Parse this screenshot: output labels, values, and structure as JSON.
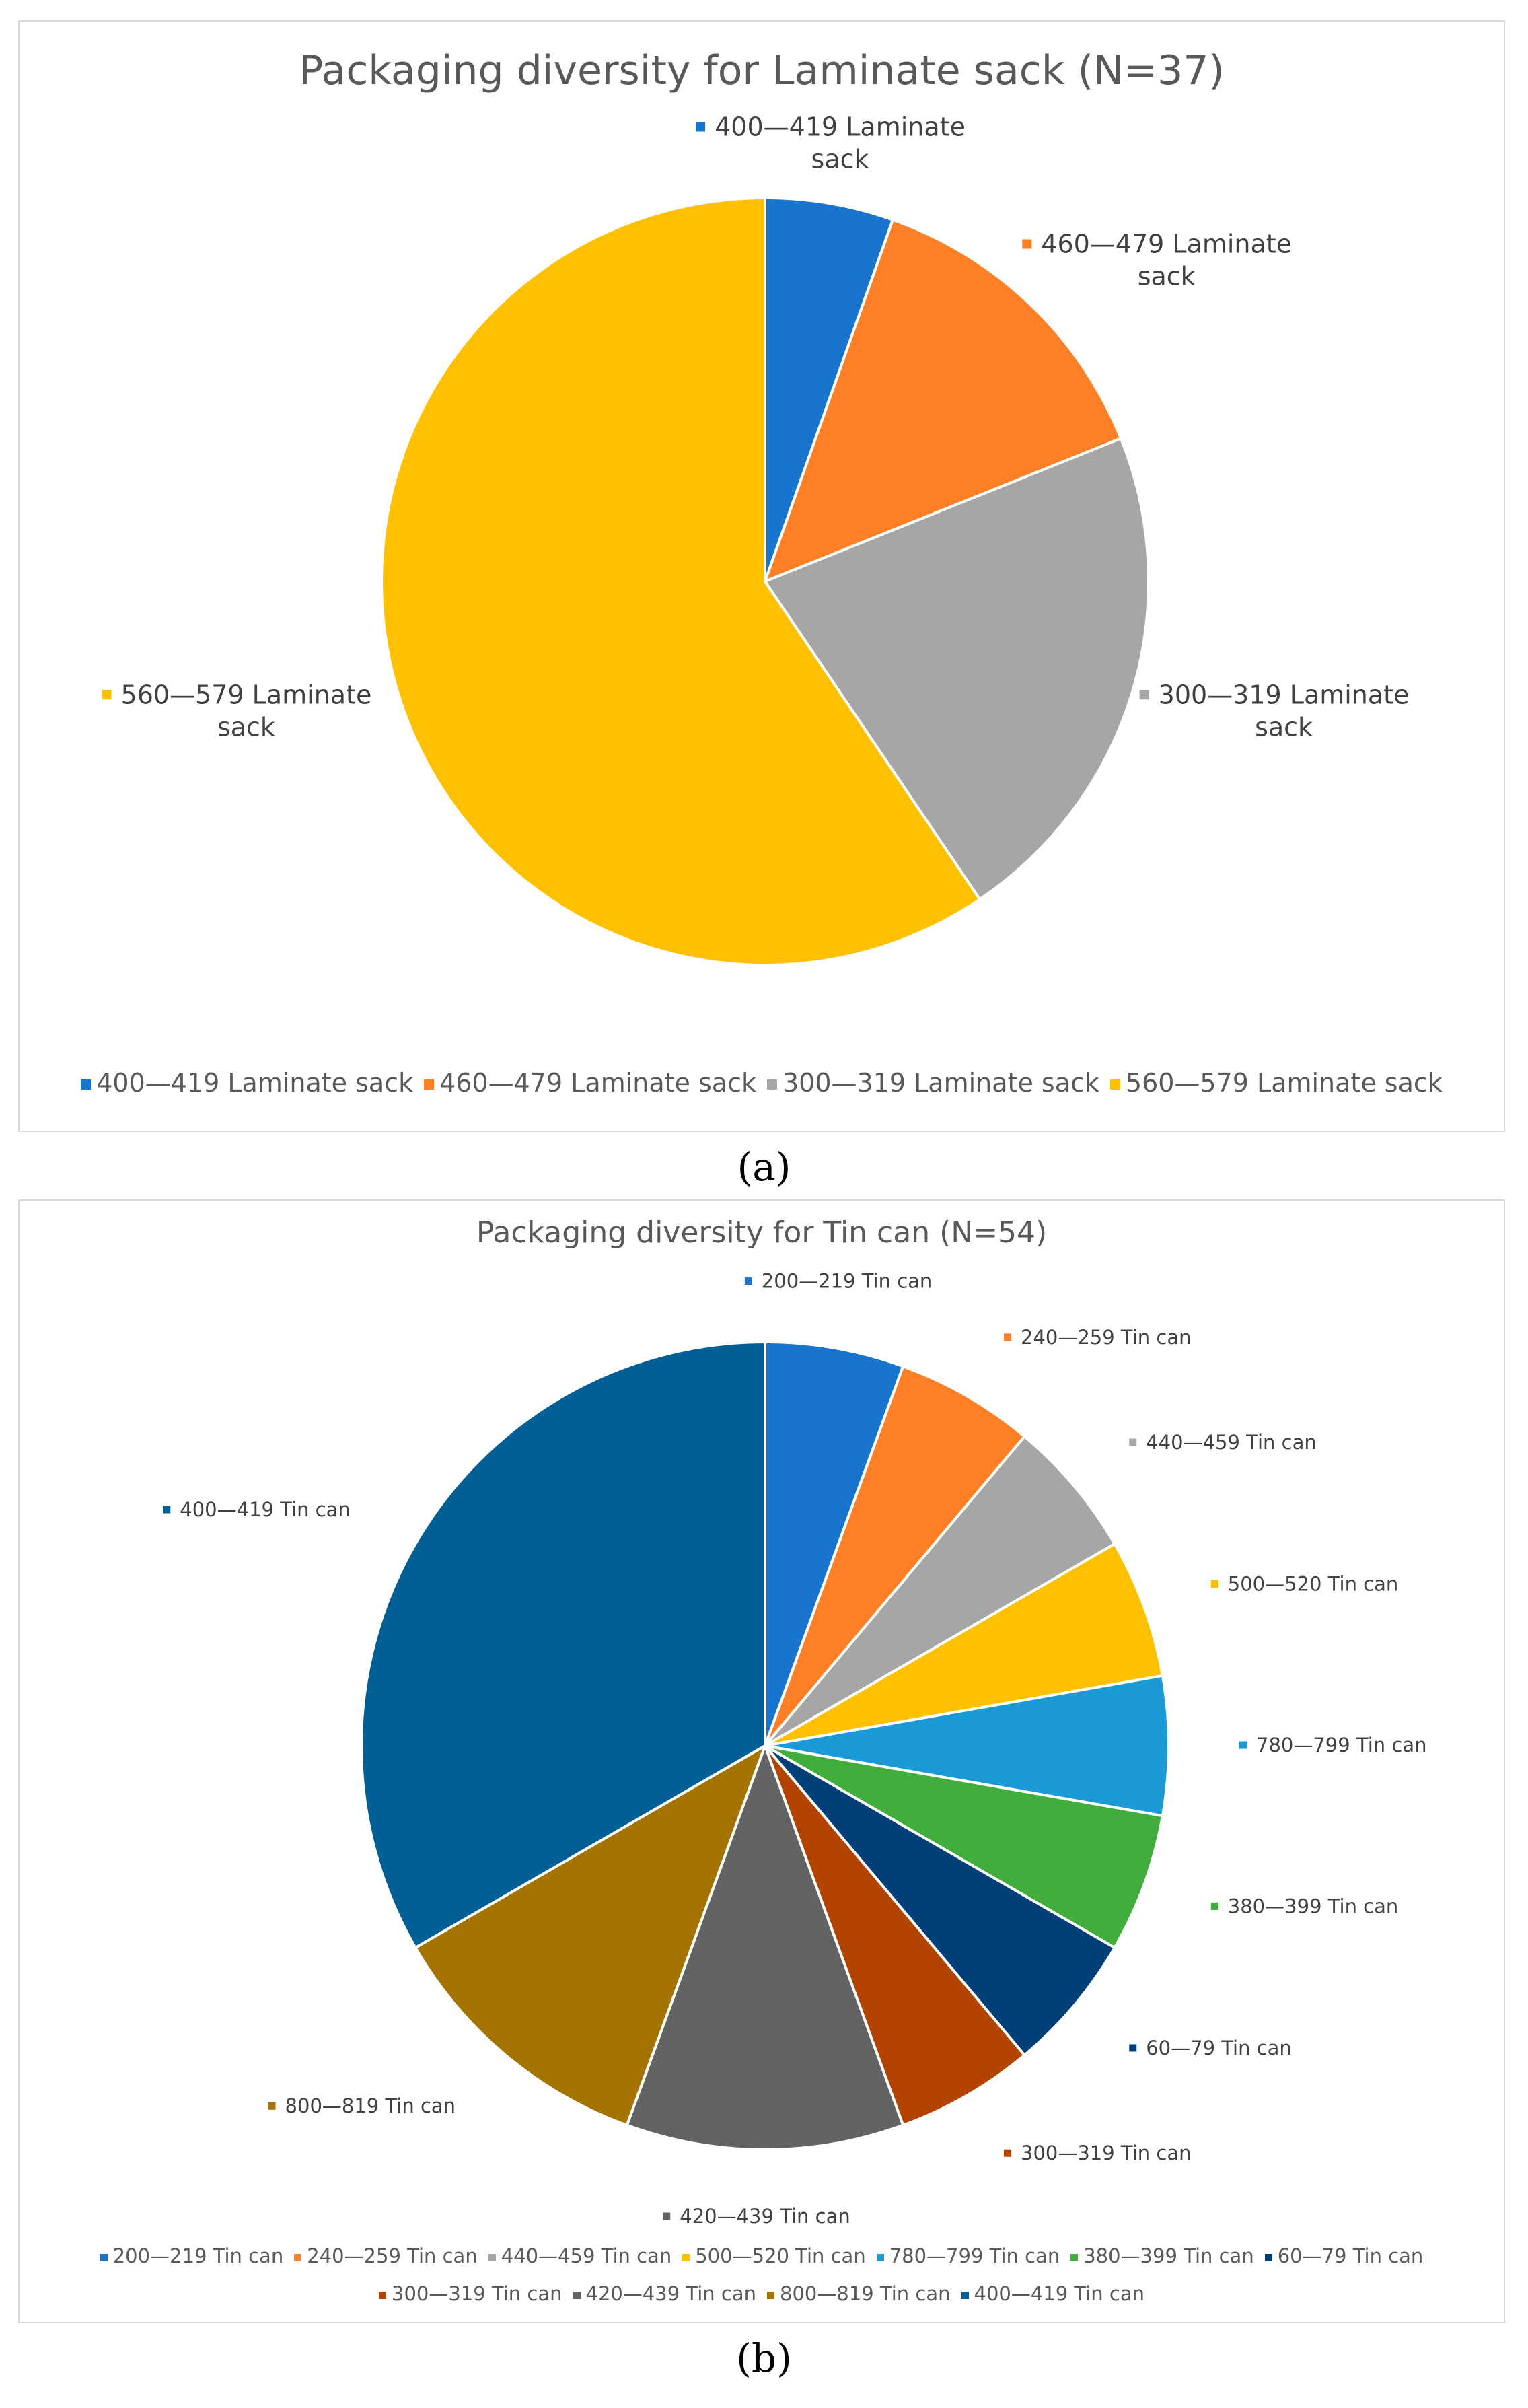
{
  "figures": [
    {
      "caption": "a",
      "chart_data": {
        "type": "pie",
        "title": "Packaging diversity for Laminate sack (N=37)",
        "categories": [
          "400—419 Laminate sack",
          "460—479 Laminate sack",
          "300—319 Laminate sack",
          "560—579 Laminate sack"
        ],
        "values": [
          2,
          5,
          8,
          22
        ],
        "colors": [
          "#1874cd",
          "#ff7f27",
          "#a6a6a6",
          "#ffc000"
        ],
        "data_labels": [
          [
            "400—419 Laminate",
            "sack"
          ],
          [
            "460—479 Laminate",
            "sack"
          ],
          [
            "300—319 Laminate",
            "sack"
          ],
          [
            "560—579 Laminate",
            "sack"
          ]
        ],
        "legend_position": "bottom",
        "start_angle": "12 o'clock",
        "direction": "clockwise"
      }
    },
    {
      "caption": "b",
      "chart_data": {
        "type": "pie",
        "title": "Packaging diversity for Tin can (N=54)",
        "categories": [
          "200—219 Tin can",
          "240—259 Tin can",
          "440—459 Tin can",
          "500—520 Tin can",
          "780—799 Tin can",
          "380—399 Tin can",
          "60—79 Tin can",
          "300—319 Tin can",
          "420—439 Tin can",
          "800—819 Tin can",
          "400—419 Tin can"
        ],
        "values": [
          3,
          3,
          3,
          3,
          3,
          3,
          3,
          3,
          6,
          6,
          18
        ],
        "colors": [
          "#1874cd",
          "#ff7f27",
          "#a6a6a6",
          "#ffc000",
          "#1a9bd7",
          "#40ad3c",
          "#003f78",
          "#b34400",
          "#636363",
          "#a47300",
          "#005f94"
        ],
        "data_labels": [
          [
            "200—219 Tin can"
          ],
          [
            "240—259 Tin can"
          ],
          [
            "440—459 Tin can"
          ],
          [
            "500—520 Tin can"
          ],
          [
            "780—799 Tin can"
          ],
          [
            "380—399 Tin can"
          ],
          [
            "60—79 Tin can"
          ],
          [
            "300—319 Tin can"
          ],
          [
            "420—439 Tin can"
          ],
          [
            "800—819 Tin can"
          ],
          [
            "400—419 Tin can"
          ]
        ],
        "legend_position": "bottom",
        "start_angle": "12 o'clock",
        "direction": "clockwise"
      }
    }
  ]
}
